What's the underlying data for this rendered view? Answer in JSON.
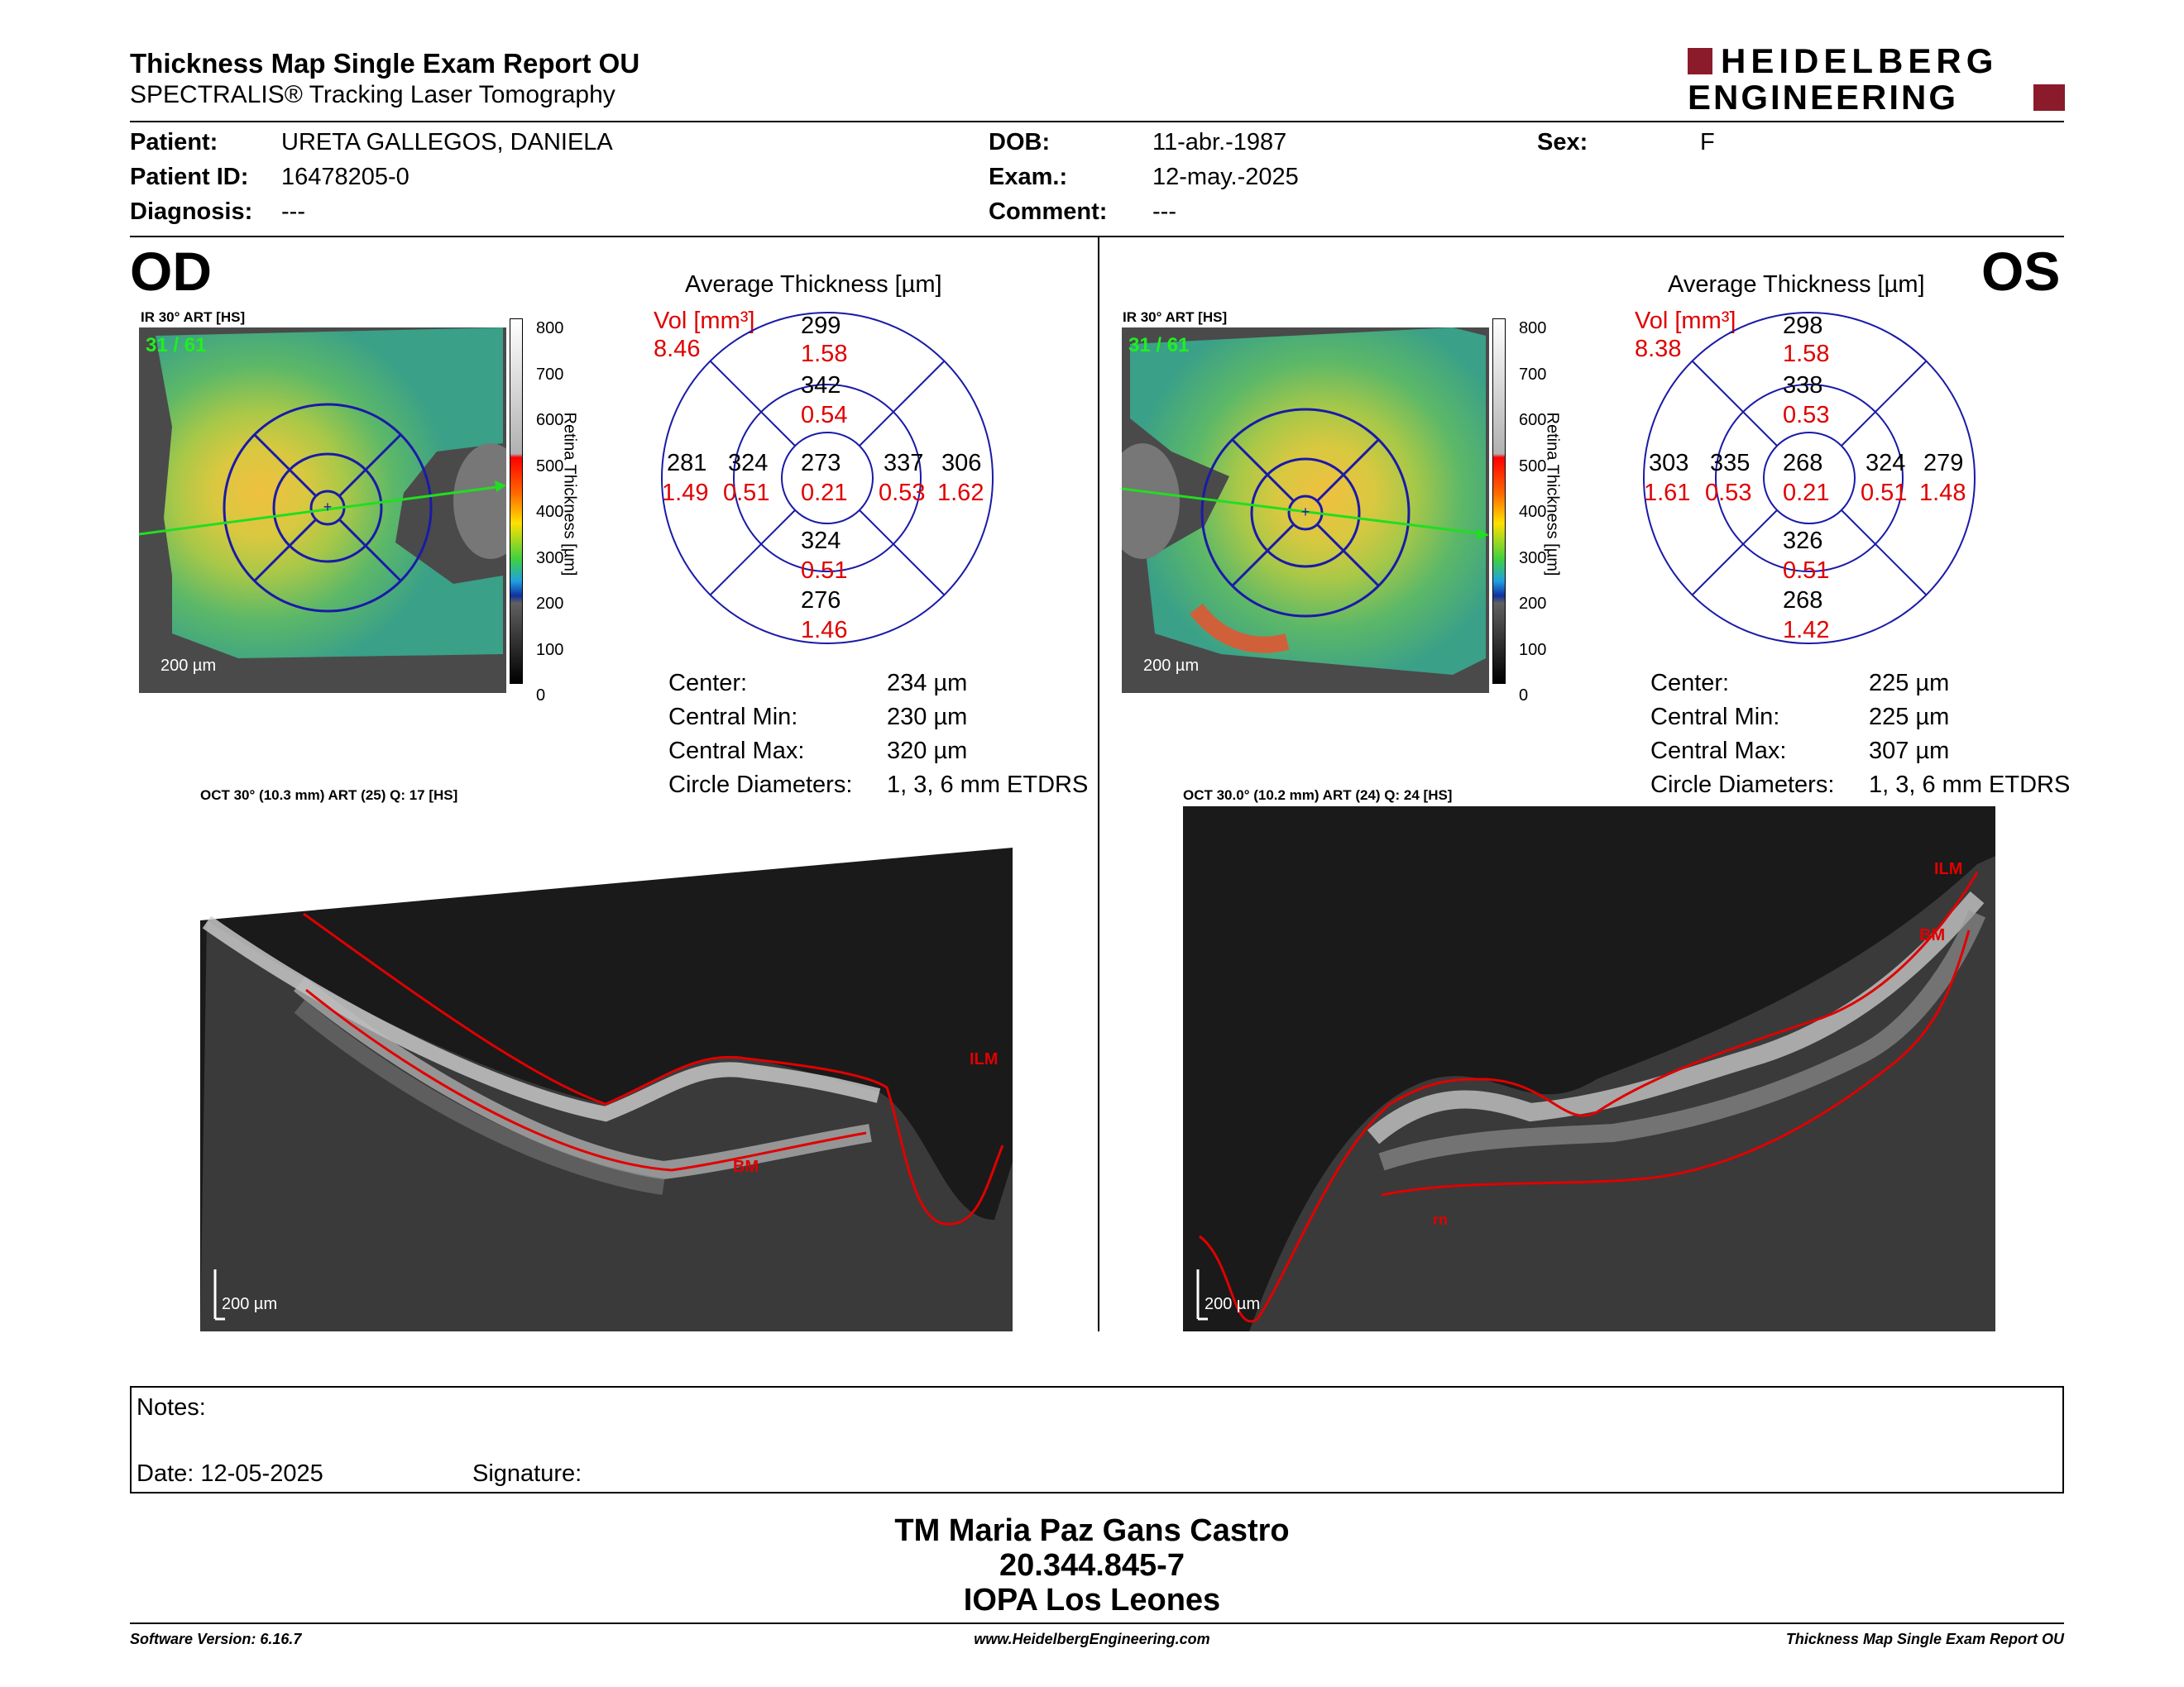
{
  "header": {
    "title": "Thickness Map Single Exam Report OU",
    "subtitle": "SPECTRALIS® Tracking Laser Tomography",
    "logo_line1": "HEIDELBERG",
    "logo_line2": "ENGINEERING",
    "logo_color": "#8b1a2b"
  },
  "patient": {
    "patient_label": "Patient:",
    "patient_value": "URETA GALLEGOS, DANIELA",
    "id_label": "Patient ID:",
    "id_value": "16478205-0",
    "diag_label": "Diagnosis:",
    "diag_value": "---",
    "dob_label": "DOB:",
    "dob_value": "11-abr.-1987",
    "exam_label": "Exam.:",
    "exam_value": "12-may.-2025",
    "comment_label": "Comment:",
    "comment_value": "---",
    "sex_label": "Sex:",
    "sex_value": "F"
  },
  "colorbar": {
    "ticks": [
      "800",
      "700",
      "600",
      "500",
      "400",
      "300",
      "200",
      "100",
      "0"
    ],
    "label": "Retina Thickness [µm]"
  },
  "od": {
    "eye": "OD",
    "ir_label": "IR 30° ART [HS]",
    "frame": "31 / 61",
    "scale": "200 µm",
    "ring_title": "Average Thickness [µm]",
    "vol_label": "Vol [mm³]",
    "vol_value": "8.46",
    "sectors": {
      "center": {
        "t": "273",
        "v": "0.21"
      },
      "inner_sup": {
        "t": "342",
        "v": "0.54"
      },
      "inner_inf": {
        "t": "324",
        "v": "0.51"
      },
      "inner_left": {
        "t": "324",
        "v": "0.51"
      },
      "inner_right": {
        "t": "337",
        "v": "0.53"
      },
      "outer_sup": {
        "t": "299",
        "v": "1.58"
      },
      "outer_inf": {
        "t": "276",
        "v": "1.46"
      },
      "outer_left": {
        "t": "281",
        "v": "1.49"
      },
      "outer_right": {
        "t": "306",
        "v": "1.62"
      }
    },
    "stats": [
      {
        "label": "Center:",
        "value": "234 µm"
      },
      {
        "label": "Central Min:",
        "value": "230 µm"
      },
      {
        "label": "Central Max:",
        "value": "320 µm"
      },
      {
        "label": "Circle Diameters:",
        "value": "1, 3, 6 mm ETDRS"
      }
    ],
    "oct_label": "OCT 30° (10.3 mm) ART (25) Q: 17 [HS]",
    "oct_scale": "200 µm",
    "ilm": "ILM",
    "bm": "BM"
  },
  "os": {
    "eye": "OS",
    "ir_label": "IR 30° ART [HS]",
    "frame": "31 / 61",
    "scale": "200 µm",
    "ring_title": "Average Thickness [µm]",
    "vol_label": "Vol [mm³]",
    "vol_value": "8.38",
    "sectors": {
      "center": {
        "t": "268",
        "v": "0.21"
      },
      "inner_sup": {
        "t": "338",
        "v": "0.53"
      },
      "inner_inf": {
        "t": "326",
        "v": "0.51"
      },
      "inner_left": {
        "t": "335",
        "v": "0.53"
      },
      "inner_right": {
        "t": "324",
        "v": "0.51"
      },
      "outer_sup": {
        "t": "298",
        "v": "1.58"
      },
      "outer_inf": {
        "t": "268",
        "v": "1.42"
      },
      "outer_left": {
        "t": "303",
        "v": "1.61"
      },
      "outer_right": {
        "t": "279",
        "v": "1.48"
      }
    },
    "stats": [
      {
        "label": "Center:",
        "value": "225 µm"
      },
      {
        "label": "Central Min:",
        "value": "225 µm"
      },
      {
        "label": "Central Max:",
        "value": "307 µm"
      },
      {
        "label": "Circle Diameters:",
        "value": "1, 3, 6 mm ETDRS"
      }
    ],
    "oct_label": "OCT 30.0° (10.2 mm) ART (24) Q: 24 [HS]",
    "oct_scale": "200 µm",
    "ilm": "ILM",
    "bm": "BM",
    "rn": "rn"
  },
  "notes": {
    "notes_label": "Notes:",
    "date_label": "Date: 12-05-2025",
    "signature_label": "Signature:"
  },
  "signature": {
    "line1": "TM Maria Paz Gans Castro",
    "line2": "20.344.845-7",
    "line3": "IOPA Los Leones"
  },
  "footer": {
    "software": "Software Version: 6.16.7",
    "url": "www.HeidelbergEngineering.com",
    "report": "Thickness Map Single Exam Report OU"
  }
}
